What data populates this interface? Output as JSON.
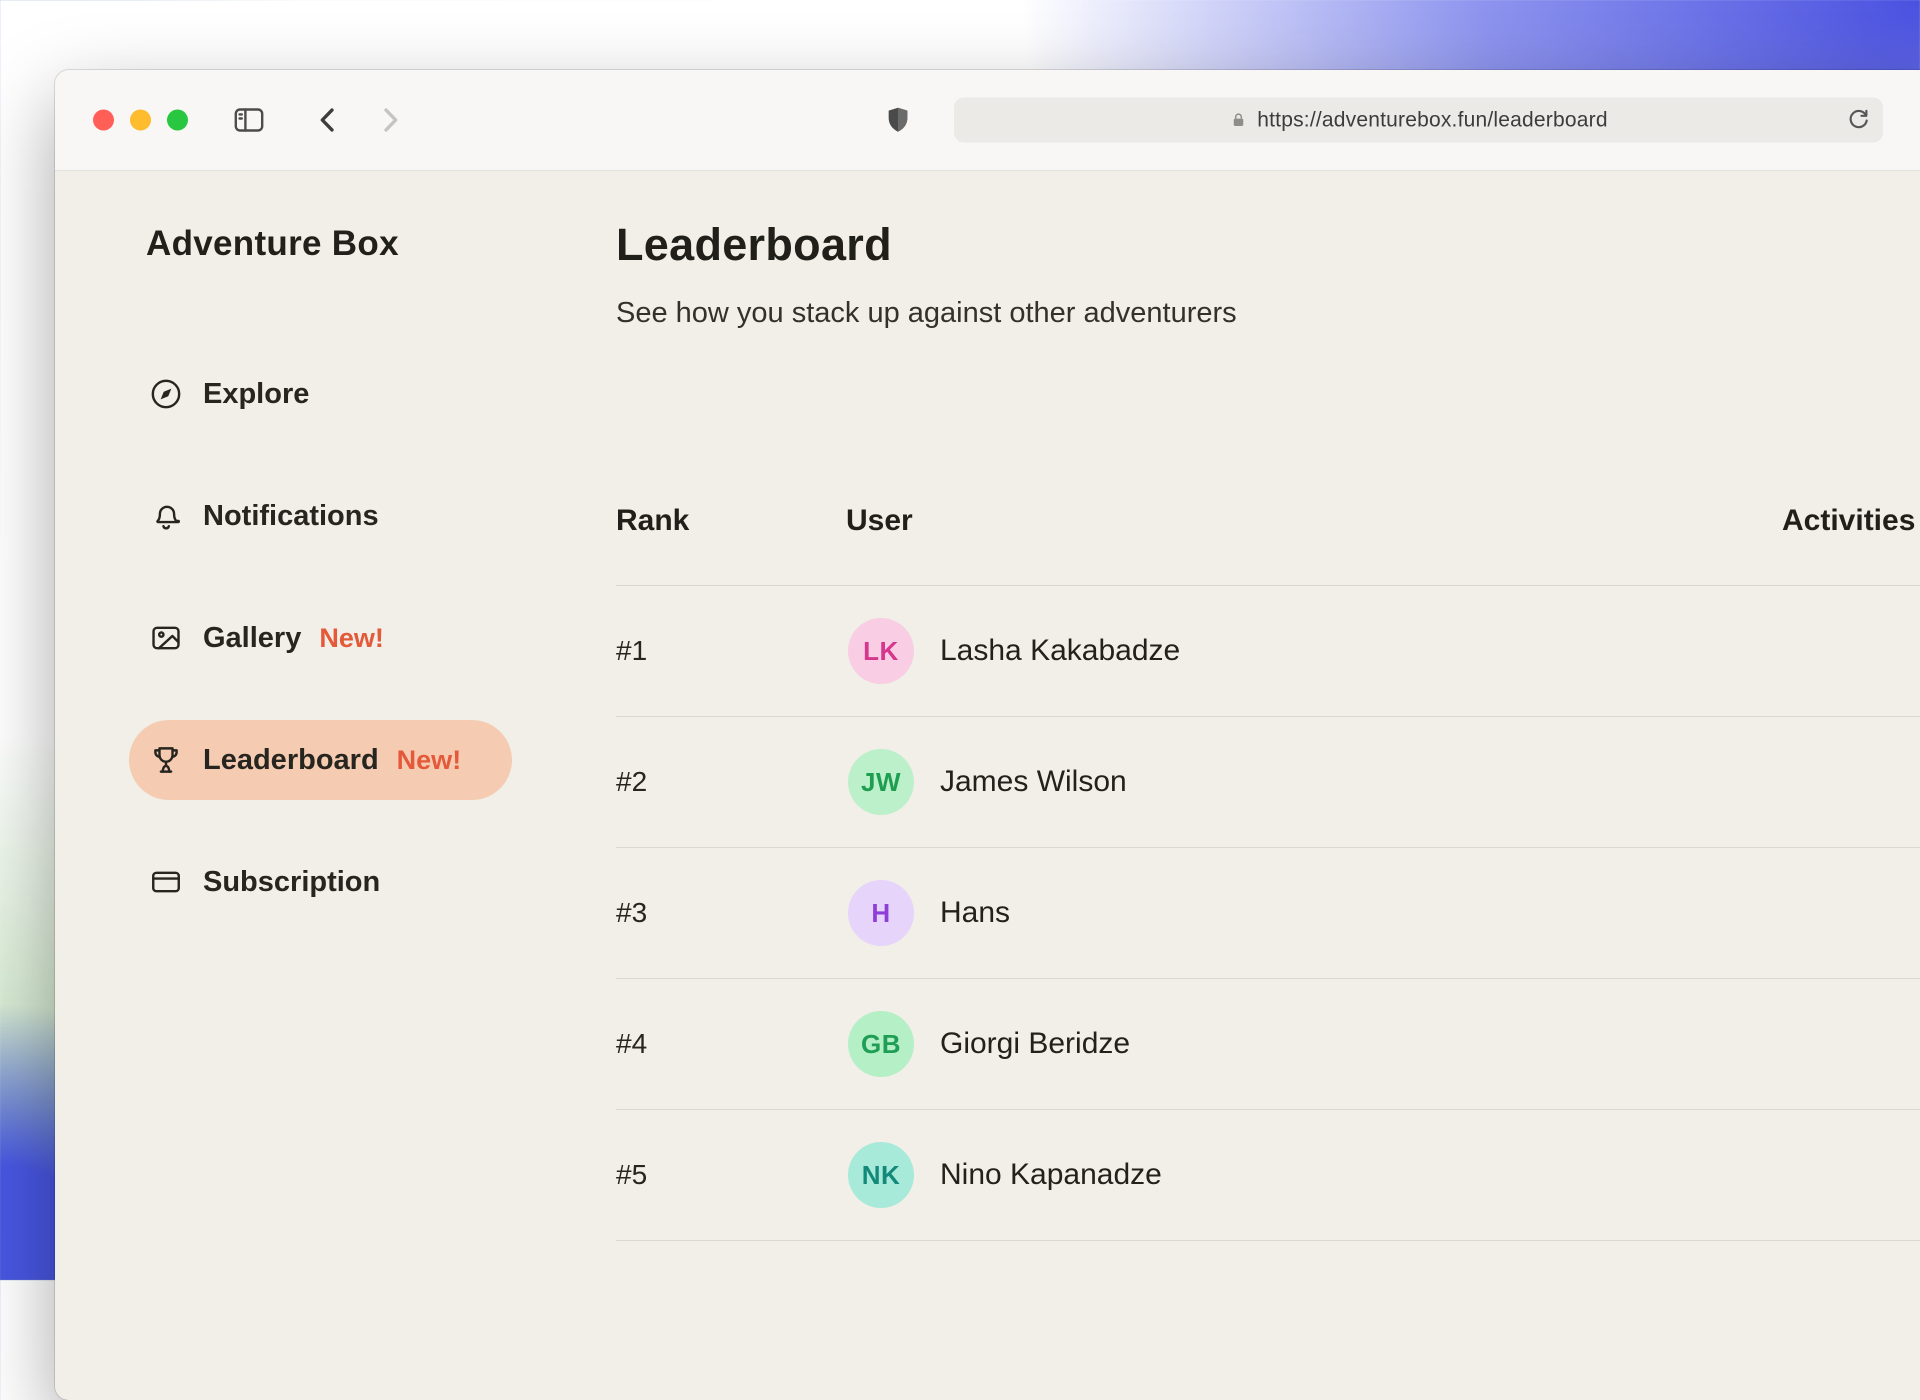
{
  "browser": {
    "url": "https://adventurebox.fun/leaderboard"
  },
  "sidebar": {
    "app_title": "Adventure Box",
    "items": [
      {
        "label": "Explore",
        "icon": "compass",
        "badge": "",
        "active": false
      },
      {
        "label": "Notifications",
        "icon": "bell",
        "badge": "",
        "active": false
      },
      {
        "label": "Gallery",
        "icon": "image",
        "badge": "New!",
        "active": false
      },
      {
        "label": "Leaderboard",
        "icon": "trophy",
        "badge": "New!",
        "active": true
      },
      {
        "label": "Subscription",
        "icon": "card",
        "badge": "",
        "active": false
      }
    ]
  },
  "main": {
    "title": "Leaderboard",
    "subtitle": "See how you stack up against other adventurers",
    "table": {
      "headers": [
        "Rank",
        "User",
        "Activities"
      ],
      "rows": [
        {
          "rank": "#1",
          "initials": "LK",
          "name": "Lasha Kakabadze",
          "avatar_bg": "#f9cde3",
          "avatar_fg": "#d5368e"
        },
        {
          "rank": "#2",
          "initials": "JW",
          "name": "James Wilson",
          "avatar_bg": "#bcf0cb",
          "avatar_fg": "#1e9e50"
        },
        {
          "rank": "#3",
          "initials": "H",
          "name": "Hans",
          "avatar_bg": "#e6d4fb",
          "avatar_fg": "#8e3fd8"
        },
        {
          "rank": "#4",
          "initials": "GB",
          "name": "Giorgi Beridze",
          "avatar_bg": "#b4efc6",
          "avatar_fg": "#1f9e55"
        },
        {
          "rank": "#5",
          "initials": "NK",
          "name": "Nino Kapanadze",
          "avatar_bg": "#a8ead9",
          "avatar_fg": "#12897a"
        }
      ]
    }
  },
  "colors": {
    "accent": "#e4593a",
    "active_pill": "#f5ccb1",
    "page_bg": "#f1efe8"
  }
}
